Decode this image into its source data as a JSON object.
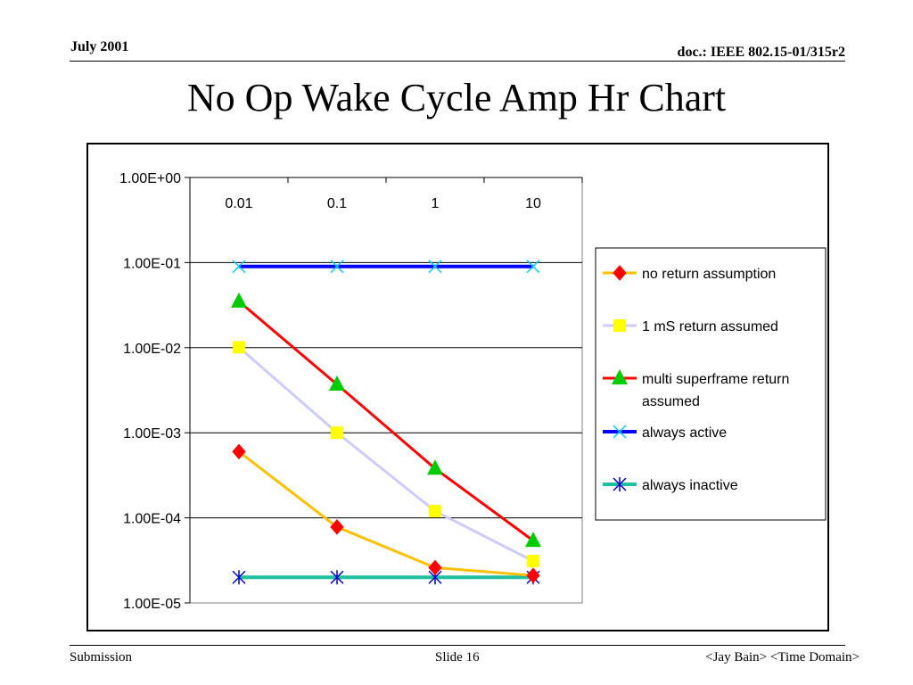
{
  "header": {
    "date": "July 2001",
    "doc_id": "doc.: IEEE 802.15-01/315r2"
  },
  "slide_title": "No Op Wake Cycle Amp Hr Chart",
  "footer": {
    "left": "Submission",
    "center": "Slide 16",
    "right": "<Jay Bain> <Time Domain>"
  },
  "chart_data": {
    "type": "line",
    "title": "",
    "xlabel": "",
    "ylabel": "",
    "categories": [
      "0.01",
      "0.1",
      "1",
      "10"
    ],
    "y_scale": "log",
    "ylim": [
      1e-05,
      1
    ],
    "y_ticks": [
      "1.00E+00",
      "1.00E-01",
      "1.00E-02",
      "1.00E-03",
      "1.00E-04",
      "1.00E-05"
    ],
    "grid": true,
    "x_axis_position": "top",
    "legend_position": "right",
    "series": [
      {
        "name": "no return assumption",
        "values": [
          0.0006,
          7.8e-05,
          2.6e-05,
          2.1e-05
        ],
        "line_color": "#FFC000",
        "marker": "diamond",
        "marker_color": "#FF0000"
      },
      {
        "name": "1 mS return assumed",
        "values": [
          0.0101,
          0.001,
          0.00012,
          3.1e-05
        ],
        "line_color": "#CCCCFF",
        "marker": "square",
        "marker_color": "#FFFF00"
      },
      {
        "name": "multi superframe  return assumed",
        "values": [
          0.035,
          0.0037,
          0.00038,
          5.4e-05
        ],
        "line_color": "#FF0000",
        "marker": "triangle",
        "marker_color": "#00CC00"
      },
      {
        "name": "always active",
        "values": [
          0.09,
          0.09,
          0.09,
          0.09
        ],
        "line_color": "#0000FF",
        "marker": "x",
        "marker_color": "#00CCFF"
      },
      {
        "name": "always inactive",
        "values": [
          2e-05,
          2e-05,
          2e-05,
          2e-05
        ],
        "line_color": "#1FBFA0",
        "marker": "star",
        "marker_color": "#0000CC"
      }
    ]
  }
}
